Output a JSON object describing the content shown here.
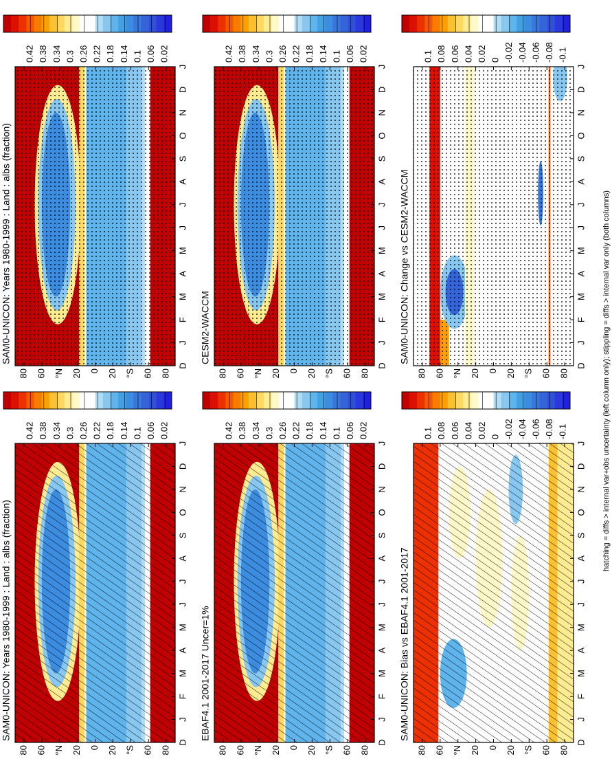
{
  "chart_data": [
    {
      "type": "heatmap",
      "title": "SAM0-UNICON: Years 1980-1999 : Land : albs (fraction)",
      "overlay": "hatching",
      "x": [
        "D",
        "J",
        "F",
        "M",
        "A",
        "M",
        "J",
        "J",
        "A",
        "S",
        "O",
        "N",
        "D",
        "J"
      ],
      "ylim": [
        -90,
        90
      ],
      "yticks": [
        80,
        60,
        {
          "value": 40,
          "label": "°N"
        },
        20,
        0,
        {
          "value": -20,
          "label": "20"
        },
        {
          "value": -40,
          "label": "°S"
        },
        {
          "value": -60,
          "label": "60"
        },
        {
          "value": -80,
          "label": "80"
        }
      ],
      "zlim": [
        0,
        0.5
      ],
      "zticks": [
        0.42,
        0.38,
        0.34,
        0.3,
        0.26,
        0.22,
        0.18,
        0.14,
        0.1,
        0.06,
        0.02
      ]
    },
    {
      "type": "heatmap",
      "title": "SAM0-UNICON: Years 1980-1999 : Land : albs (fraction)",
      "overlay": "stippling",
      "x": [
        "D",
        "J",
        "F",
        "M",
        "A",
        "M",
        "J",
        "J",
        "A",
        "S",
        "O",
        "N",
        "D",
        "J"
      ],
      "ylim": [
        -90,
        90
      ],
      "yticks": [
        80,
        60,
        {
          "value": 40,
          "label": "°N"
        },
        20,
        0,
        {
          "value": -20,
          "label": "20"
        },
        {
          "value": -40,
          "label": "°S"
        },
        {
          "value": -60,
          "label": "60"
        },
        {
          "value": -80,
          "label": "80"
        }
      ],
      "zlim": [
        0,
        0.5
      ],
      "zticks": [
        0.42,
        0.38,
        0.34,
        0.3,
        0.26,
        0.22,
        0.18,
        0.14,
        0.1,
        0.06,
        0.02
      ]
    },
    {
      "type": "heatmap",
      "title": "EBAF4.1 2001-2017 Uncer=1%",
      "overlay": "hatching",
      "x": [
        "D",
        "J",
        "F",
        "M",
        "A",
        "M",
        "J",
        "J",
        "A",
        "S",
        "O",
        "N",
        "D",
        "J"
      ],
      "ylim": [
        -90,
        90
      ],
      "yticks": [
        80,
        60,
        {
          "value": 40,
          "label": "°N"
        },
        20,
        0,
        {
          "value": -20,
          "label": "20"
        },
        {
          "value": -40,
          "label": "°S"
        },
        {
          "value": -60,
          "label": "60"
        },
        {
          "value": -80,
          "label": "80"
        }
      ],
      "zlim": [
        0,
        0.5
      ],
      "zticks": [
        0.42,
        0.38,
        0.34,
        0.3,
        0.26,
        0.22,
        0.18,
        0.14,
        0.1,
        0.06,
        0.02
      ]
    },
    {
      "type": "heatmap",
      "title": "CESM2-WACCM",
      "overlay": "stippling",
      "x": [
        "D",
        "J",
        "F",
        "M",
        "A",
        "M",
        "J",
        "J",
        "A",
        "S",
        "O",
        "N",
        "D",
        "J"
      ],
      "ylim": [
        -90,
        90
      ],
      "yticks": [
        80,
        60,
        {
          "value": 40,
          "label": "°N"
        },
        20,
        0,
        {
          "value": -20,
          "label": "20"
        },
        {
          "value": -40,
          "label": "°S"
        },
        {
          "value": -60,
          "label": "60"
        },
        {
          "value": -80,
          "label": "80"
        }
      ],
      "zlim": [
        0,
        0.5
      ],
      "zticks": [
        0.42,
        0.38,
        0.34,
        0.3,
        0.26,
        0.22,
        0.18,
        0.14,
        0.1,
        0.06,
        0.02
      ]
    },
    {
      "type": "heatmap",
      "title": "SAM0-UNICON: Bias vs EBAF4.1 2001-2017",
      "overlay": "hatching",
      "x": [
        "D",
        "J",
        "F",
        "M",
        "A",
        "M",
        "J",
        "J",
        "A",
        "S",
        "O",
        "N",
        "D",
        "J"
      ],
      "ylim": [
        -90,
        90
      ],
      "yticks": [
        80,
        60,
        {
          "value": 40,
          "label": "°N"
        },
        20,
        0,
        {
          "value": -20,
          "label": "20"
        },
        {
          "value": -40,
          "label": "°S"
        },
        {
          "value": -60,
          "label": "60"
        },
        {
          "value": -80,
          "label": "80"
        }
      ],
      "zlim": [
        -0.11,
        0.14
      ],
      "zticks": [
        0.1,
        0.08,
        0.06,
        0.04,
        0.02,
        0,
        -0.02,
        -0.04,
        -0.06,
        -0.08,
        -0.1
      ]
    },
    {
      "type": "heatmap",
      "title": "SAM0-UNICON: Change vs CESM2-WACCM",
      "overlay": "stippling",
      "x": [
        "D",
        "J",
        "F",
        "M",
        "A",
        "M",
        "J",
        "J",
        "A",
        "S",
        "O",
        "N",
        "D",
        "J"
      ],
      "ylim": [
        -90,
        90
      ],
      "yticks": [
        80,
        60,
        {
          "value": 40,
          "label": "°N"
        },
        20,
        0,
        {
          "value": -20,
          "label": "20"
        },
        {
          "value": -40,
          "label": "°S"
        },
        {
          "value": -60,
          "label": "60"
        },
        {
          "value": -80,
          "label": "80"
        }
      ],
      "zlim": [
        -0.11,
        0.14
      ],
      "zticks": [
        0.1,
        0.08,
        0.06,
        0.04,
        0.02,
        0,
        -0.02,
        -0.04,
        -0.06,
        -0.08,
        -0.1
      ]
    }
  ],
  "colormap": [
    "#c00000",
    "#dc1000",
    "#ec3000",
    "#f45800",
    "#f87c00",
    "#fba000",
    "#fdc030",
    "#ffd860",
    "#ffec90",
    "#fff8c8",
    "#ffffff",
    "#ffffff",
    "#b0dcf4",
    "#88c8f0",
    "#60b4ec",
    "#44a0e4",
    "#3c8ce0",
    "#3878dc",
    "#3464d8",
    "#3050d8",
    "#2a38dc",
    "#2020e0"
  ],
  "footnote": "hatching = diffs > internal var+obs uncertainty (left column only); stippling = diffs > internal var only (both columns)"
}
